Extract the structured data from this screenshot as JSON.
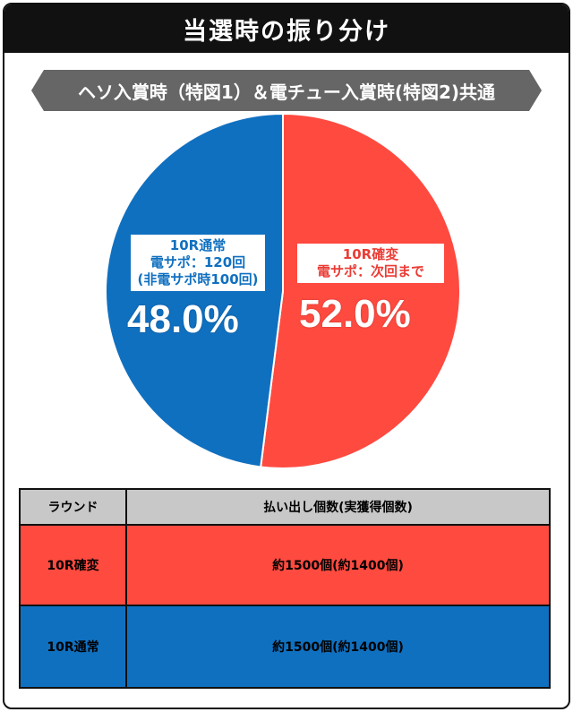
{
  "header": {
    "title": "当選時の振り分け"
  },
  "subtitle": "ヘソ入賞時（特図1）＆電チュー入賞時(特図2)共通",
  "chart_data": {
    "type": "pie",
    "slices": [
      {
        "label": [
          "10R確変",
          "電サポ：次回まで"
        ],
        "value": 52.0,
        "display": "52.0%",
        "color": "#ff4a40"
      },
      {
        "label": [
          "10R通常",
          "電サポ：120回",
          "(非電サポ時100回)"
        ],
        "value": 48.0,
        "display": "48.0%",
        "color": "#1070c0"
      }
    ]
  },
  "table": {
    "headers": [
      "ラウンド",
      "払い出し個数(実獲得個数)"
    ],
    "rows": [
      {
        "round": "10R確変",
        "payout": "約1500個(約1400個)",
        "color": "#ff4a40"
      },
      {
        "round": "10R通常",
        "payout": "約1500個(約1400個)",
        "color": "#1070c0"
      }
    ]
  }
}
